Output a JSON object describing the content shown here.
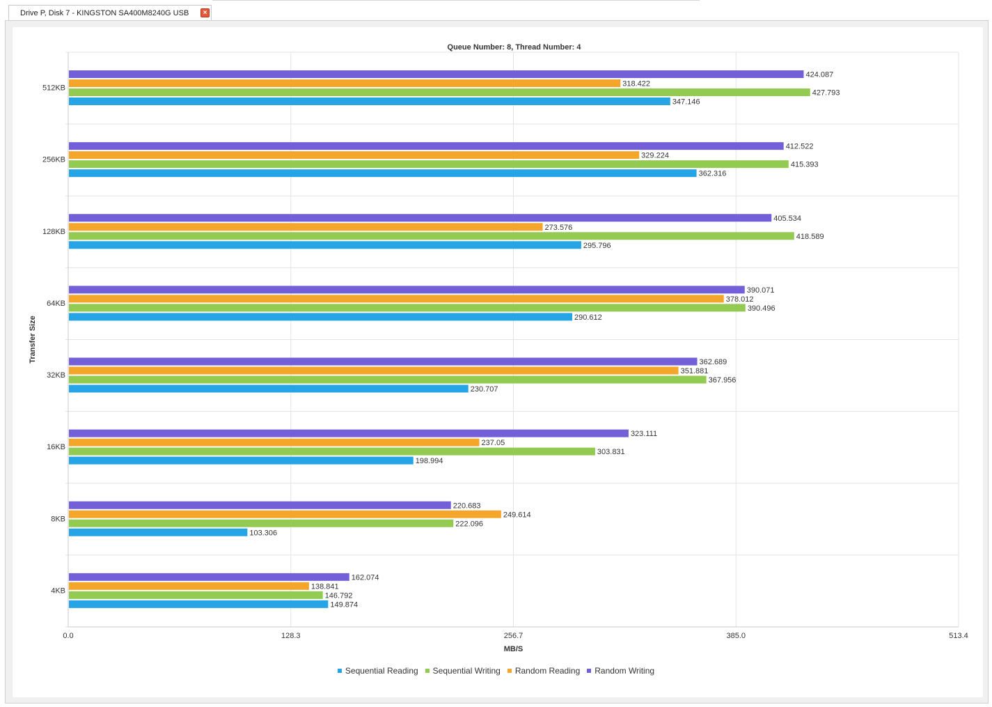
{
  "tab": {
    "label": "Drive P, Disk 7 - KINGSTON SA400M8240G USB",
    "close_symbol": "×"
  },
  "chart_data": {
    "type": "bar",
    "orientation": "horizontal",
    "title": "Queue Number: 8, Thread Number: 4",
    "xlabel": "MB/S",
    "ylabel": "Transfer Size",
    "xlim": [
      0,
      513.4
    ],
    "xticks": [
      "0.0",
      "128.3",
      "256.7",
      "385.0",
      "513.4"
    ],
    "categories": [
      "512KB",
      "256KB",
      "128KB",
      "64KB",
      "32KB",
      "16KB",
      "8KB",
      "4KB"
    ],
    "series": [
      {
        "name": "Random Writing",
        "color": "#7360d8",
        "values": [
          424.087,
          412.522,
          405.534,
          390.071,
          362.689,
          323.111,
          220.683,
          162.074
        ]
      },
      {
        "name": "Random Reading",
        "color": "#f4a62a",
        "values": [
          318.422,
          329.224,
          273.576,
          378.012,
          351.881,
          237.05,
          249.614,
          138.841
        ]
      },
      {
        "name": "Sequential Writing",
        "color": "#93cb52",
        "values": [
          427.793,
          415.393,
          418.589,
          390.496,
          367.956,
          303.831,
          222.096,
          146.792
        ]
      },
      {
        "name": "Sequential Reading",
        "color": "#25a4e6",
        "values": [
          347.146,
          362.316,
          295.796,
          290.612,
          230.707,
          198.994,
          103.306,
          149.874
        ]
      }
    ],
    "legend_position": "bottom",
    "legend_order": [
      "Sequential Reading",
      "Sequential Writing",
      "Random Reading",
      "Random Writing"
    ],
    "grid": true
  }
}
